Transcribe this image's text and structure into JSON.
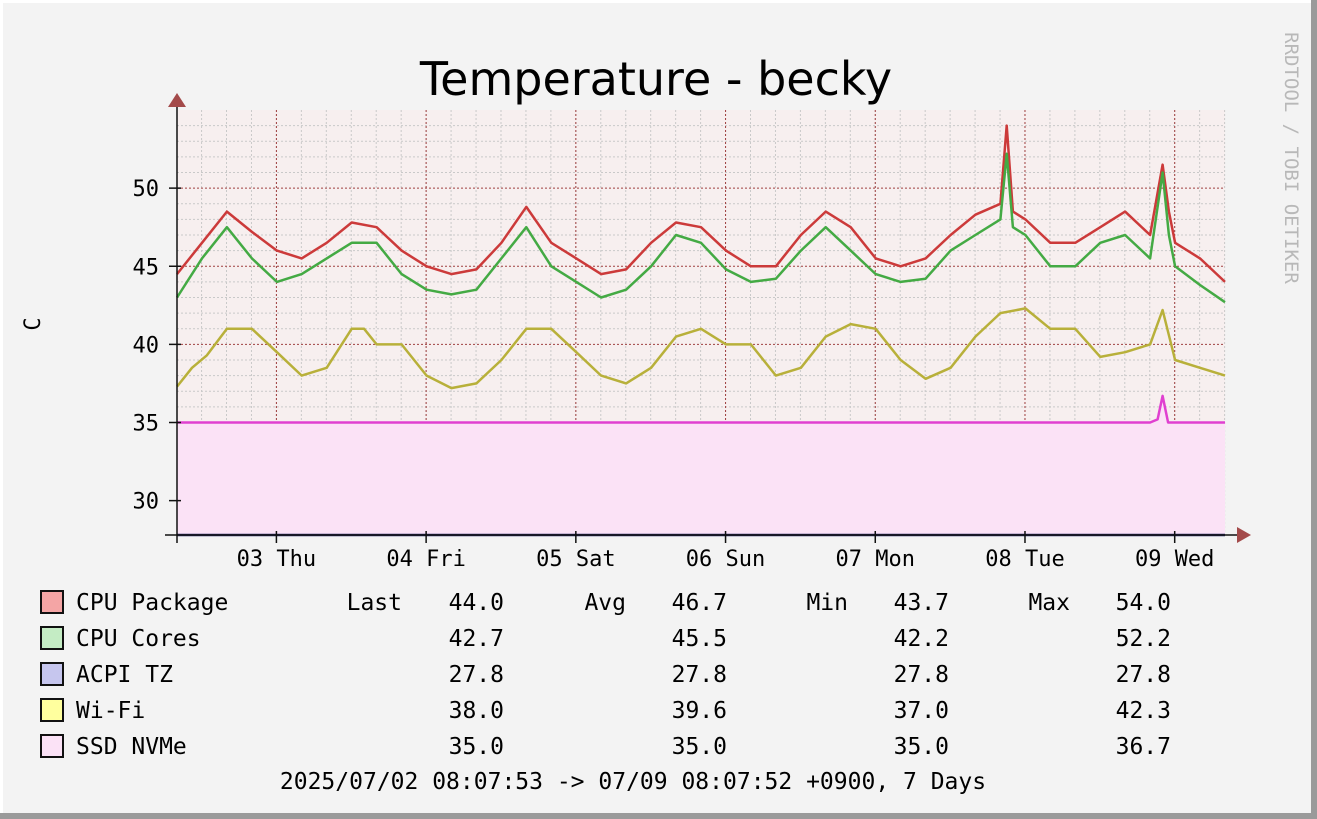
{
  "chart_data": {
    "type": "line",
    "title": "Temperature - becky",
    "ylabel": "C",
    "watermark": "RRDTOOL / TOBI OETIKER",
    "ylim": [
      27.8,
      55
    ],
    "xlim": [
      0,
      7
    ],
    "x_unit": "days since 2025/07/02 08:07:53",
    "y_ticks": [
      30,
      35,
      40,
      45,
      50
    ],
    "x_ticks": [
      {
        "x": 0.664,
        "label": "03 Thu"
      },
      {
        "x": 1.664,
        "label": "04 Fri"
      },
      {
        "x": 2.664,
        "label": "05 Sat"
      },
      {
        "x": 3.664,
        "label": "06 Sun"
      },
      {
        "x": 4.664,
        "label": "07 Mon"
      },
      {
        "x": 5.664,
        "label": "08 Tue"
      },
      {
        "x": 6.664,
        "label": "09 Wed"
      }
    ],
    "grid": true,
    "legend_position": "bottom",
    "series": [
      {
        "name": "CPU Package",
        "color": "#cc3a3a",
        "swatch": "#f4a5a5",
        "last": "44.0",
        "avg": "46.7",
        "min": "43.7",
        "max": "54.0",
        "x": [
          0,
          0.167,
          0.333,
          0.5,
          0.667,
          0.833,
          1,
          1.167,
          1.333,
          1.5,
          1.667,
          1.833,
          2,
          2.167,
          2.333,
          2.5,
          2.667,
          2.833,
          3,
          3.167,
          3.333,
          3.5,
          3.667,
          3.833,
          4,
          4.167,
          4.333,
          4.5,
          4.667,
          4.833,
          5,
          5.167,
          5.333,
          5.5,
          5.542,
          5.583,
          5.667,
          5.833,
          6,
          6.167,
          6.333,
          6.5,
          6.583,
          6.625,
          6.667,
          6.833,
          7
        ],
        "y": [
          44.5,
          46.5,
          48.5,
          47.2,
          46,
          45.5,
          46.5,
          47.8,
          47.5,
          46,
          45,
          44.5,
          44.8,
          46.5,
          48.8,
          46.5,
          45.5,
          44.5,
          44.8,
          46.5,
          47.8,
          47.5,
          46,
          45,
          45,
          47,
          48.5,
          47.5,
          45.5,
          45,
          45.5,
          47,
          48.3,
          49,
          54,
          48.5,
          48,
          46.5,
          46.5,
          47.5,
          48.5,
          47,
          51.5,
          48.5,
          46.5,
          45.5,
          44
        ]
      },
      {
        "name": "CPU Cores",
        "color": "#44aa44",
        "swatch": "#c4ecc4",
        "last": "42.7",
        "avg": "45.5",
        "min": "42.2",
        "max": "52.2",
        "x": [
          0,
          0.167,
          0.333,
          0.5,
          0.667,
          0.833,
          1,
          1.167,
          1.333,
          1.5,
          1.667,
          1.833,
          2,
          2.167,
          2.333,
          2.5,
          2.667,
          2.833,
          3,
          3.167,
          3.333,
          3.5,
          3.667,
          3.833,
          4,
          4.167,
          4.333,
          4.5,
          4.667,
          4.833,
          5,
          5.167,
          5.333,
          5.5,
          5.542,
          5.583,
          5.667,
          5.833,
          6,
          6.167,
          6.333,
          6.5,
          6.583,
          6.625,
          6.667,
          6.833,
          7
        ],
        "y": [
          43,
          45.5,
          47.5,
          45.5,
          44,
          44.5,
          45.5,
          46.5,
          46.5,
          44.5,
          43.5,
          43.2,
          43.5,
          45.5,
          47.5,
          45,
          44,
          43,
          43.5,
          45,
          47,
          46.5,
          44.8,
          44,
          44.2,
          46,
          47.5,
          46,
          44.5,
          44,
          44.2,
          46,
          47,
          48,
          52.2,
          47.5,
          47,
          45,
          45,
          46.5,
          47,
          45.5,
          51,
          47,
          45,
          43.8,
          42.7
        ]
      },
      {
        "name": "ACPI TZ",
        "color": "#2a2a6a",
        "swatch": "#c6c6ee",
        "last": "27.8",
        "avg": "27.8",
        "min": "27.8",
        "max": "27.8",
        "x": [
          0,
          7
        ],
        "y": [
          27.8,
          27.8
        ]
      },
      {
        "name": "Wi-Fi",
        "color": "#b8b03a",
        "swatch": "#ffff9e",
        "last": "38.0",
        "avg": "39.6",
        "min": "37.0",
        "max": "42.3",
        "x": [
          0,
          0.1,
          0.2,
          0.333,
          0.5,
          0.667,
          0.833,
          1,
          1.167,
          1.25,
          1.333,
          1.5,
          1.667,
          1.833,
          2,
          2.167,
          2.333,
          2.5,
          2.667,
          2.833,
          3,
          3.167,
          3.333,
          3.5,
          3.667,
          3.833,
          4,
          4.167,
          4.333,
          4.5,
          4.667,
          4.833,
          5,
          5.167,
          5.333,
          5.5,
          5.667,
          5.833,
          6,
          6.167,
          6.333,
          6.5,
          6.583,
          6.667,
          6.833,
          7
        ],
        "y": [
          37.3,
          38.5,
          39.3,
          41,
          41,
          39.5,
          38,
          38.5,
          41,
          41,
          40,
          40,
          38,
          37.2,
          37.5,
          39,
          41,
          41,
          39.5,
          38,
          37.5,
          38.5,
          40.5,
          41,
          40,
          40,
          38,
          38.5,
          40.5,
          41.3,
          41,
          39,
          37.8,
          38.5,
          40.5,
          42,
          42.3,
          41,
          41,
          39.2,
          39.5,
          40,
          42.2,
          39,
          38.5,
          38
        ]
      },
      {
        "name": "SSD NVMe",
        "color": "#e040d0",
        "swatch": "#fbe2f6",
        "last": "35.0",
        "avg": "35.0",
        "min": "35.0",
        "max": "36.7",
        "x": [
          0,
          6.5,
          6.55,
          6.583,
          6.62,
          7
        ],
        "y": [
          35,
          35,
          35.2,
          36.7,
          35,
          35
        ]
      }
    ],
    "legend_headers": {
      "last": "Last",
      "avg": "Avg",
      "min": "Min",
      "max": "Max"
    },
    "footer": "2025/07/02 08:07:53 -> 07/09 08:07:52 +0900, 7 Days"
  }
}
